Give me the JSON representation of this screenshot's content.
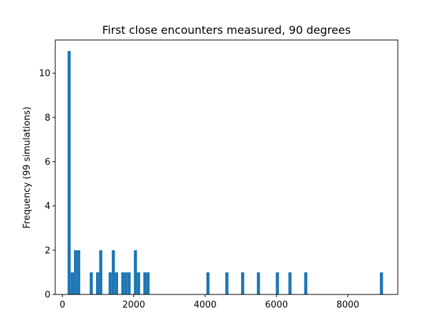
{
  "chart_data": {
    "type": "bar",
    "title": "First close encounters measured, 90 degrees",
    "xlabel": "",
    "ylabel": "Frequency (99 simulations)",
    "xlim": [
      -200,
      9400
    ],
    "ylim": [
      0,
      11.5
    ],
    "xticks": [
      0,
      2000,
      4000,
      6000,
      8000
    ],
    "yticks": [
      0,
      2,
      4,
      6,
      8,
      10
    ],
    "bin_width": 88,
    "grid": false,
    "color": "#1f77b4",
    "bars": [
      {
        "x": 190,
        "value": 11
      },
      {
        "x": 280,
        "value": 1
      },
      {
        "x": 368,
        "value": 2
      },
      {
        "x": 456,
        "value": 2
      },
      {
        "x": 810,
        "value": 1
      },
      {
        "x": 987,
        "value": 1
      },
      {
        "x": 1075,
        "value": 2
      },
      {
        "x": 1340,
        "value": 1
      },
      {
        "x": 1428,
        "value": 2
      },
      {
        "x": 1517,
        "value": 1
      },
      {
        "x": 1694,
        "value": 1
      },
      {
        "x": 1782,
        "value": 1
      },
      {
        "x": 1870,
        "value": 1
      },
      {
        "x": 2047,
        "value": 2
      },
      {
        "x": 2135,
        "value": 1
      },
      {
        "x": 2312,
        "value": 1
      },
      {
        "x": 2400,
        "value": 1
      },
      {
        "x": 4080,
        "value": 1
      },
      {
        "x": 4610,
        "value": 1
      },
      {
        "x": 5052,
        "value": 1
      },
      {
        "x": 5494,
        "value": 1
      },
      {
        "x": 6025,
        "value": 1
      },
      {
        "x": 6378,
        "value": 1
      },
      {
        "x": 6820,
        "value": 1
      },
      {
        "x": 8942,
        "value": 1
      }
    ]
  }
}
